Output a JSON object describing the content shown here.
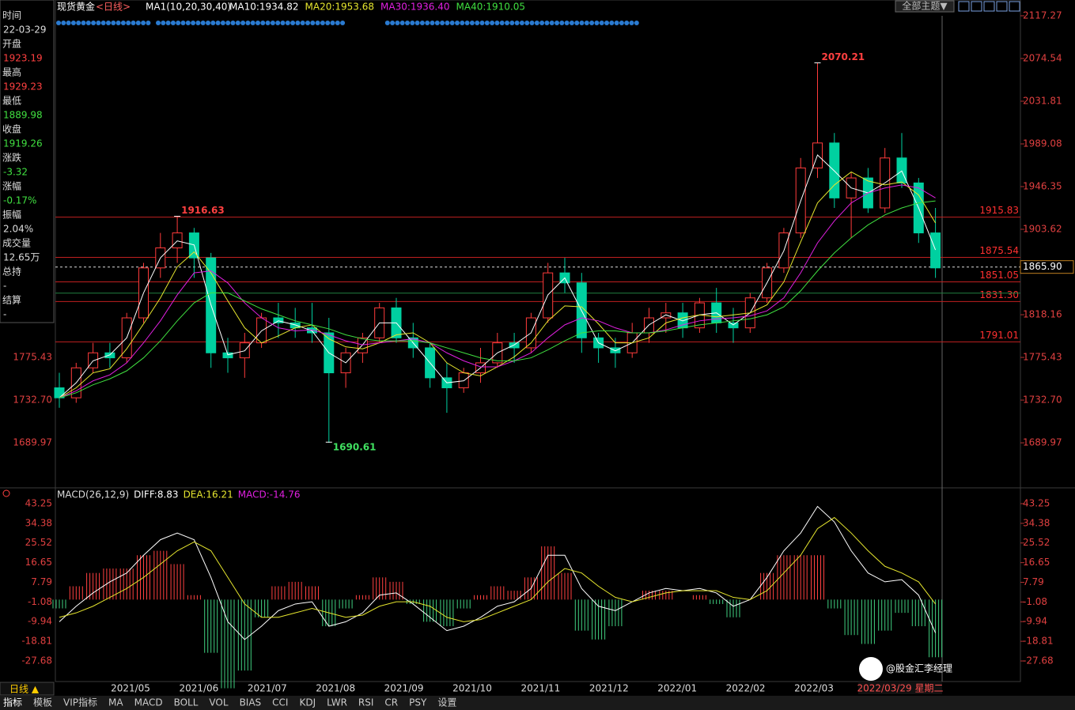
{
  "header": {
    "title": "现货黄金",
    "period": "<日线>",
    "indicator": "MA1(10,20,30,40)",
    "legend": [
      {
        "text": "MA10:1934.82",
        "color": "#ffffff"
      },
      {
        "text": "MA20:1953.68",
        "color": "#e6e62e"
      },
      {
        "text": "MA30:1936.40",
        "color": "#e020e0"
      },
      {
        "text": "MA40:1910.05",
        "color": "#40e040"
      }
    ],
    "theme_button": "全部主题▼"
  },
  "info_panel": [
    {
      "label": "时间",
      "value": "22-03-29",
      "color": "#dddddd"
    },
    {
      "label": "开盘",
      "value": "1923.19",
      "color": "#ff4040"
    },
    {
      "label": "最高",
      "value": "1929.23",
      "color": "#ff4040"
    },
    {
      "label": "最低",
      "value": "1889.98",
      "color": "#40e040"
    },
    {
      "label": "收盘",
      "value": "1919.26",
      "color": "#40e040"
    },
    {
      "label": "涨跌",
      "value": "-3.32",
      "color": "#40e040"
    },
    {
      "label": "涨幅",
      "value": "-0.17%",
      "color": "#40e040"
    },
    {
      "label": "振幅",
      "value": "2.04%",
      "color": "#dddddd"
    },
    {
      "label": "成交量",
      "value": "12.65万",
      "color": "#dddddd"
    },
    {
      "label": "总持",
      "value": "-",
      "color": "#dddddd"
    },
    {
      "label": "结算",
      "value": "-",
      "color": "#dddddd"
    }
  ],
  "chart_data": [
    {
      "type": "candlestick",
      "up_color": "#ff3b3b",
      "down_color": "#00d0a0",
      "open": [
        1745,
        1735,
        1765,
        1780,
        1775,
        1815,
        1865,
        1885,
        1900,
        1875,
        1780,
        1775,
        1790,
        1815,
        1810,
        1805,
        1800,
        1760,
        1780,
        1795,
        1825,
        1795,
        1785,
        1755,
        1745,
        1760,
        1770,
        1790,
        1785,
        1815,
        1860,
        1850,
        1795,
        1785,
        1780,
        1800,
        1815,
        1820,
        1805,
        1830,
        1810,
        1805,
        1835,
        1865,
        1900,
        1965,
        1990,
        1935,
        1955,
        1925,
        1975,
        1950,
        1900
      ],
      "high": [
        1760,
        1770,
        1790,
        1790,
        1820,
        1870,
        1900,
        1917,
        1905,
        1880,
        1795,
        1800,
        1820,
        1830,
        1825,
        1830,
        1815,
        1785,
        1800,
        1830,
        1835,
        1810,
        1790,
        1770,
        1765,
        1785,
        1800,
        1800,
        1820,
        1870,
        1875,
        1860,
        1800,
        1795,
        1810,
        1825,
        1830,
        1830,
        1835,
        1845,
        1825,
        1840,
        1870,
        1905,
        1975,
        2070,
        2000,
        1960,
        1965,
        1985,
        2000,
        1955,
        1925
      ],
      "low": [
        1725,
        1730,
        1760,
        1765,
        1770,
        1810,
        1855,
        1870,
        1855,
        1765,
        1760,
        1755,
        1785,
        1795,
        1795,
        1790,
        1690,
        1745,
        1770,
        1790,
        1790,
        1775,
        1745,
        1720,
        1740,
        1750,
        1765,
        1770,
        1780,
        1810,
        1840,
        1780,
        1770,
        1765,
        1775,
        1790,
        1800,
        1795,
        1800,
        1800,
        1790,
        1800,
        1830,
        1860,
        1895,
        1955,
        1925,
        1895,
        1920,
        1920,
        1945,
        1890,
        1855
      ],
      "close": [
        1735,
        1765,
        1780,
        1775,
        1815,
        1865,
        1885,
        1900,
        1875,
        1780,
        1775,
        1790,
        1815,
        1810,
        1805,
        1800,
        1760,
        1780,
        1795,
        1825,
        1795,
        1785,
        1755,
        1745,
        1760,
        1770,
        1790,
        1785,
        1815,
        1860,
        1850,
        1795,
        1785,
        1780,
        1800,
        1815,
        1820,
        1805,
        1830,
        1810,
        1805,
        1835,
        1865,
        1900,
        1965,
        1990,
        1935,
        1955,
        1925,
        1975,
        1950,
        1900,
        1865
      ],
      "series": [
        {
          "color": "#ffffff",
          "values": [
            1735,
            1750,
            1772,
            1778,
            1795,
            1840,
            1875,
            1892,
            1888,
            1828,
            1778,
            1782,
            1802,
            1812,
            1808,
            1802,
            1780,
            1770,
            1788,
            1810,
            1810,
            1790,
            1770,
            1750,
            1752,
            1765,
            1780,
            1788,
            1800,
            1838,
            1855,
            1822,
            1790,
            1782,
            1790,
            1808,
            1818,
            1812,
            1818,
            1820,
            1808,
            1820,
            1850,
            1882,
            1932,
            1978,
            1962,
            1945,
            1940,
            1950,
            1962,
            1925,
            1883
          ]
        },
        {
          "color": "#e6e62e",
          "values": [
            1735,
            1745,
            1760,
            1764,
            1784,
            1809,
            1835,
            1866,
            1881,
            1860,
            1832,
            1805,
            1790,
            1797,
            1805,
            1808,
            1794,
            1786,
            1784,
            1790,
            1798,
            1800,
            1790,
            1770,
            1760,
            1757,
            1766,
            1776,
            1790,
            1812,
            1827,
            1826,
            1809,
            1790,
            1790,
            1795,
            1810,
            1815,
            1818,
            1816,
            1818,
            1820,
            1828,
            1851,
            1891,
            1930,
            1948,
            1961,
            1952,
            1948,
            1951,
            1938,
            1910
          ]
        },
        {
          "color": "#e020e0",
          "values": [
            1735,
            1742,
            1752,
            1758,
            1770,
            1790,
            1812,
            1838,
            1860,
            1862,
            1850,
            1830,
            1815,
            1805,
            1802,
            1803,
            1798,
            1792,
            1788,
            1790,
            1792,
            1794,
            1790,
            1780,
            1772,
            1766,
            1766,
            1772,
            1780,
            1795,
            1808,
            1815,
            1812,
            1805,
            1800,
            1800,
            1803,
            1808,
            1812,
            1814,
            1815,
            1817,
            1822,
            1835,
            1860,
            1890,
            1912,
            1930,
            1940,
            1945,
            1948,
            1945,
            1935
          ]
        },
        {
          "color": "#40e040",
          "values": [
            1735,
            1740,
            1748,
            1754,
            1762,
            1775,
            1792,
            1812,
            1830,
            1840,
            1840,
            1832,
            1824,
            1818,
            1812,
            1808,
            1804,
            1798,
            1794,
            1792,
            1792,
            1792,
            1790,
            1785,
            1780,
            1775,
            1772,
            1772,
            1775,
            1783,
            1792,
            1800,
            1802,
            1802,
            1800,
            1800,
            1802,
            1805,
            1808,
            1810,
            1812,
            1814,
            1818,
            1826,
            1842,
            1862,
            1880,
            1895,
            1908,
            1918,
            1925,
            1930,
            1932
          ]
        }
      ],
      "ylim": [
        1646.5,
        2121.2
      ],
      "yticks": [
        2117.27,
        2074.54,
        2031.81,
        1989.08,
        1946.35,
        1903.62,
        1818.16,
        1775.43,
        {
          "value": 1732.7,
          "label": "1732.70"
        },
        1689.97
      ],
      "levels": [
        1915.83,
        1875.54,
        1851.05,
        {
          "value": 1831.3,
          "label": "1831.30"
        },
        1791.01
      ],
      "current": {
        "value": 1865.9,
        "label": "1865.90"
      },
      "annotations": [
        1916.63,
        2070.21,
        1690.61
      ],
      "x_axis_labels": [
        "2021/05",
        "2021/06",
        "2021/07",
        "2021/08",
        "2021/09",
        "2021/10",
        "2021/11",
        "2021/12",
        "2022/01",
        "2022/02",
        "2022/03"
      ]
    },
    {
      "type": "macd",
      "legend": [
        {
          "text": "MACD(26,12,9)",
          "color": "#dddddd"
        },
        {
          "text": "DIFF:8.83",
          "color": "#ffffff"
        },
        {
          "text": "DEA:16.21",
          "color": "#e6e62e"
        },
        {
          "text": "MACD:-14.76",
          "color": "#e020e0"
        }
      ],
      "values": [
        -4,
        6,
        12,
        14,
        14,
        20,
        22,
        16,
        2,
        -24,
        -40,
        -32,
        -8,
        6,
        8,
        6,
        -12,
        -4,
        2,
        10,
        8,
        -2,
        -10,
        -12,
        -4,
        2,
        6,
        4,
        10,
        24,
        12,
        -14,
        -18,
        -12,
        0,
        4,
        4,
        0,
        2,
        -2,
        -8,
        0,
        12,
        20,
        20,
        20,
        -4,
        -16,
        -20,
        -14,
        -6,
        -12,
        -26
      ],
      "up_color": "#ff4040",
      "down_color": "#40d080",
      "series": [
        {
          "color": "#ffffff",
          "values": [
            -10,
            -3,
            3,
            8,
            12,
            20,
            27,
            30,
            27,
            10,
            -10,
            -18,
            -12,
            -5,
            -2,
            -1,
            -12,
            -10,
            -6,
            2,
            3,
            -2,
            -8,
            -14,
            -12,
            -8,
            -3,
            -1,
            5,
            20,
            20,
            5,
            -3,
            -5,
            -1,
            3,
            5,
            4,
            5,
            3,
            -3,
            0,
            10,
            22,
            30,
            42,
            35,
            22,
            12,
            8,
            9,
            2,
            -15
          ]
        },
        {
          "color": "#e6e62e",
          "values": [
            -8,
            -6,
            -3,
            1,
            5,
            10,
            16,
            22,
            26,
            22,
            10,
            -2,
            -8,
            -8,
            -6,
            -4,
            -6,
            -8,
            -7,
            -3,
            -1,
            -1,
            -3,
            -8,
            -10,
            -9,
            -6,
            -3,
            0,
            8,
            14,
            12,
            6,
            1,
            -1,
            1,
            3,
            4,
            4,
            4,
            1,
            0,
            4,
            12,
            20,
            32,
            37,
            30,
            22,
            15,
            12,
            8,
            -2
          ]
        }
      ],
      "ylim": [
        -36.24,
        45.75
      ],
      "yticks": [
        43.25,
        34.38,
        25.52,
        16.65,
        7.79,
        -1.08,
        -9.94,
        -18.81,
        -27.68
      ]
    }
  ],
  "footer": {
    "period_button": "日线 ▲",
    "date": "2022/03/29 星期二",
    "tabs": [
      "指标",
      "模板",
      "VIP指标",
      "MA",
      "MACD",
      "BOLL",
      "VOL",
      "BIAS",
      "CCI",
      "KDJ",
      "LWR",
      "RSI",
      "CR",
      "PSY",
      "设置"
    ]
  },
  "watermark": "@股金汇李经理"
}
